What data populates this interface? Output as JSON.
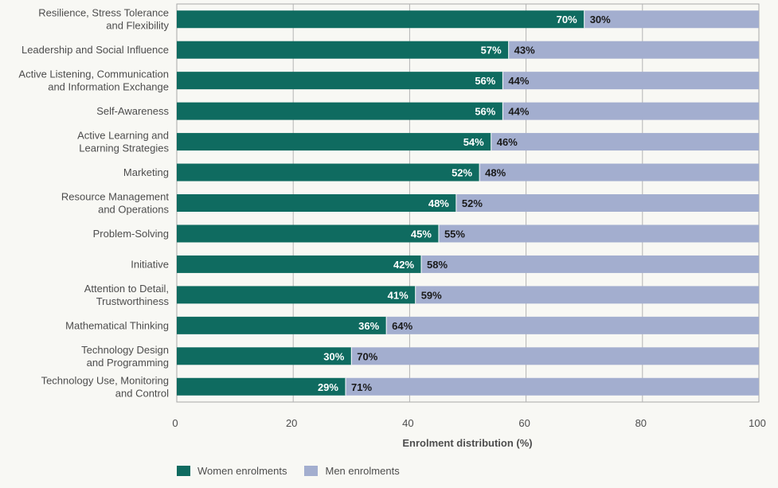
{
  "chart_data": {
    "type": "bar",
    "orientation": "horizontal",
    "stacked": true,
    "categories": [
      "Resilience, Stress Tolerance|and Flexibility",
      "Leadership and Social Influence",
      "Active Listening, Communication|and Information Exchange",
      "Self-Awareness",
      "Active Learning and|Learning Strategies",
      "Marketing",
      "Resource Management|and Operations",
      "Problem-Solving",
      "Initiative",
      "Attention to Detail,|Trustworthiness",
      "Mathematical Thinking",
      "Technology Design|and Programming",
      "Technology Use, Monitoring|and Control"
    ],
    "series": [
      {
        "name": "Women enrolments",
        "color": "#0f6b60",
        "values": [
          70,
          57,
          56,
          56,
          54,
          52,
          48,
          45,
          42,
          41,
          36,
          30,
          29
        ]
      },
      {
        "name": "Men enrolments",
        "color": "#a3aecf",
        "values": [
          30,
          43,
          44,
          44,
          46,
          48,
          52,
          55,
          58,
          59,
          64,
          70,
          71
        ]
      }
    ],
    "data_labels": {
      "women": [
        "70%",
        "57%",
        "56%",
        "56%",
        "54%",
        "52%",
        "48%",
        "45%",
        "42%",
        "41%",
        "36%",
        "30%",
        "29%"
      ],
      "men": [
        "30%",
        "43%",
        "44%",
        "44%",
        "46%",
        "48%",
        "52%",
        "55%",
        "58%",
        "59%",
        "64%",
        "70%",
        "71%"
      ]
    },
    "xlabel": "Enrolment distribution (%)",
    "ylabel": "",
    "xlim": [
      0,
      100
    ],
    "xticks": [
      "0",
      "20",
      "40",
      "60",
      "80",
      "100"
    ],
    "grid": true,
    "legend_placement": "bottom-left"
  }
}
